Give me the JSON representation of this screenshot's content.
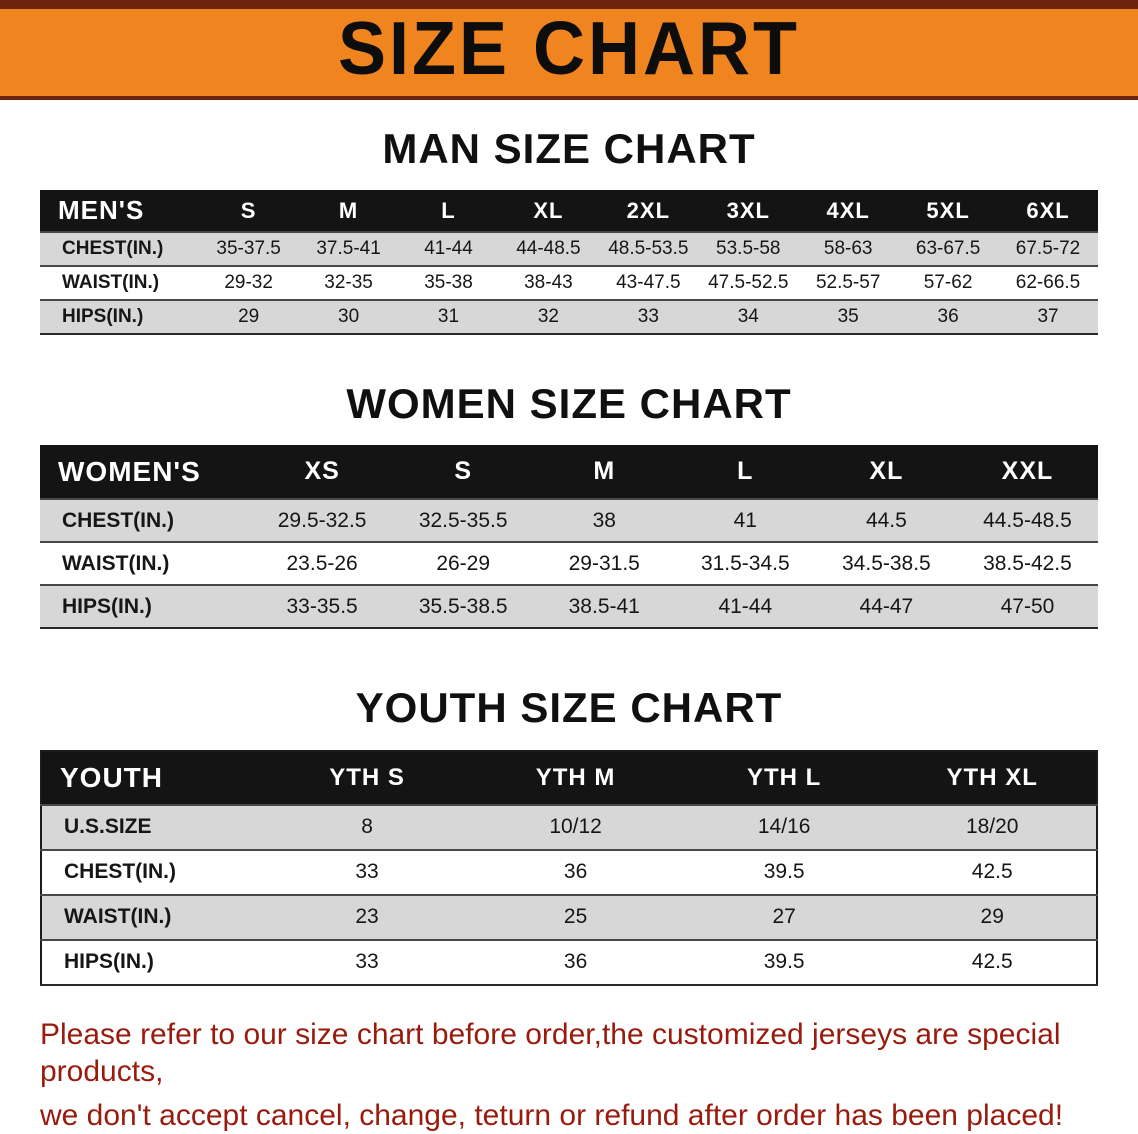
{
  "banner": {
    "title": "SIZE CHART",
    "bg_color": "#f0841f",
    "stripe_color": "#6e2310"
  },
  "tables": {
    "men": {
      "heading": "MAN SIZE CHART",
      "header": [
        "MEN'S",
        "S",
        "M",
        "L",
        "XL",
        "2XL",
        "3XL",
        "4XL",
        "5XL",
        "6XL"
      ],
      "rows": [
        {
          "label": "CHEST(IN.)",
          "values": [
            "35-37.5",
            "37.5-41",
            "41-44",
            "44-48.5",
            "48.5-53.5",
            "53.5-58",
            "58-63",
            "63-67.5",
            "67.5-72"
          ]
        },
        {
          "label": "WAIST(IN.)",
          "values": [
            "29-32",
            "32-35",
            "35-38",
            "38-43",
            "43-47.5",
            "47.5-52.5",
            "52.5-57",
            "57-62",
            "62-66.5"
          ]
        },
        {
          "label": "HIPS(IN.)",
          "values": [
            "29",
            "30",
            "31",
            "32",
            "33",
            "34",
            "35",
            "36",
            "37"
          ]
        }
      ]
    },
    "women": {
      "heading": "WOMEN SIZE CHART",
      "header": [
        "WOMEN'S",
        "XS",
        "S",
        "M",
        "L",
        "XL",
        "XXL"
      ],
      "rows": [
        {
          "label": "CHEST(IN.)",
          "values": [
            "29.5-32.5",
            "32.5-35.5",
            "38",
            "41",
            "44.5",
            "44.5-48.5"
          ]
        },
        {
          "label": "WAIST(IN.)",
          "values": [
            "23.5-26",
            "26-29",
            "29-31.5",
            "31.5-34.5",
            "34.5-38.5",
            "38.5-42.5"
          ]
        },
        {
          "label": "HIPS(IN.)",
          "values": [
            "33-35.5",
            "35.5-38.5",
            "38.5-41",
            "41-44",
            "44-47",
            "47-50"
          ]
        }
      ]
    },
    "youth": {
      "heading": "YOUTH SIZE CHART",
      "header": [
        "YOUTH",
        "YTH S",
        "YTH M",
        "YTH L",
        "YTH XL"
      ],
      "rows": [
        {
          "label": "U.S.SIZE",
          "values": [
            "8",
            "10/12",
            "14/16",
            "18/20"
          ]
        },
        {
          "label": "CHEST(IN.)",
          "values": [
            "33",
            "36",
            "39.5",
            "42.5"
          ]
        },
        {
          "label": "WAIST(IN.)",
          "values": [
            "23",
            "25",
            "27",
            "29"
          ]
        },
        {
          "label": "HIPS(IN.)",
          "values": [
            "33",
            "36",
            "39.5",
            "42.5"
          ]
        }
      ]
    }
  },
  "footer": {
    "line1": "Please refer to our size chart before order,the customized jerseys are special products,",
    "line2": "we don't accept cancel, change, teturn or refund after order has been placed!"
  }
}
